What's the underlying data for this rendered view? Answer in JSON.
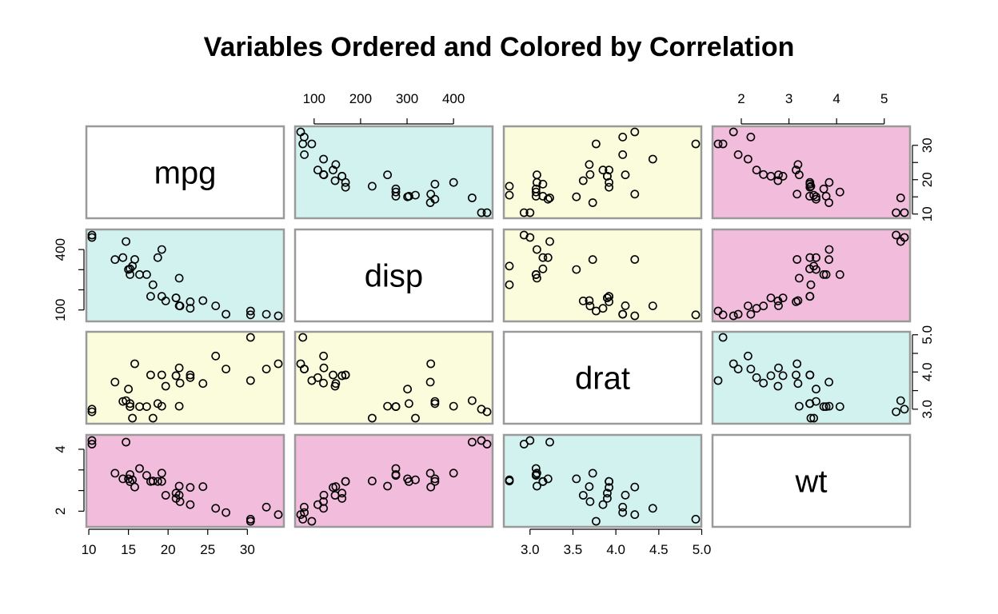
{
  "chart_data": {
    "type": "scatter-matrix",
    "title": "Variables Ordered and Colored by Correlation",
    "variables": [
      "mpg",
      "disp",
      "drat",
      "wt"
    ],
    "colors": {
      "diagonal": "#ffffff",
      "strong": "#f2bcdc",
      "medium": "#d2f2f0",
      "weak": "#fbfcdb",
      "frame": "#9a9a9a"
    },
    "panel_colors": [
      [
        "diagonal",
        "medium",
        "weak",
        "strong"
      ],
      [
        "medium",
        "diagonal",
        "weak",
        "strong"
      ],
      [
        "weak",
        "weak",
        "diagonal",
        "medium"
      ],
      [
        "strong",
        "strong",
        "medium",
        "diagonal"
      ]
    ],
    "ranges": {
      "mpg": [
        10.4,
        33.9
      ],
      "disp": [
        71.1,
        472
      ],
      "drat": [
        2.76,
        4.93
      ],
      "wt": [
        1.513,
        5.424
      ]
    },
    "ticks": {
      "mpg": [
        10,
        15,
        20,
        25,
        30
      ],
      "disp": [
        100,
        200,
        300,
        400
      ],
      "drat": [
        3.0,
        3.5,
        4.0,
        4.5,
        5.0
      ],
      "wt": [
        2,
        3,
        4,
        5
      ]
    },
    "tick_labels": {
      "bottom": {
        "mpg": [
          "10",
          "15",
          "20",
          "25",
          "30"
        ],
        "drat": [
          "3.0",
          "3.5",
          "4.0",
          "4.5",
          "5.0"
        ]
      },
      "top": {
        "disp": [
          "100",
          "200",
          "300",
          "400"
        ],
        "wt": [
          "2",
          "3",
          "4",
          "5"
        ]
      },
      "left": {
        "disp": [
          "100",
          "400"
        ],
        "wt": [
          "2",
          "4"
        ]
      },
      "right": {
        "mpg": [
          "10",
          "20",
          "30"
        ],
        "drat": [
          "3.0",
          "4.0",
          "5.0"
        ]
      }
    },
    "left_tick_values": {
      "disp": [
        100,
        200,
        300,
        400
      ],
      "wt": [
        2,
        3,
        4,
        5
      ]
    },
    "right_tick_values": {
      "mpg": [
        10,
        15,
        20,
        25,
        30
      ],
      "drat": [
        3.0,
        3.5,
        4.0,
        4.5,
        5.0
      ]
    },
    "data": {
      "mpg": [
        21.0,
        21.0,
        22.8,
        21.4,
        18.7,
        18.1,
        14.3,
        24.4,
        22.8,
        19.2,
        17.8,
        16.4,
        17.3,
        15.2,
        10.4,
        10.4,
        14.7,
        32.4,
        30.4,
        33.9,
        21.5,
        15.5,
        15.2,
        13.3,
        19.2,
        27.3,
        26.0,
        30.4,
        15.8,
        19.7,
        15.0,
        21.4
      ],
      "disp": [
        160,
        160,
        108,
        258,
        360,
        225,
        360,
        146.7,
        140.8,
        167.6,
        167.6,
        275.8,
        275.8,
        275.8,
        472,
        460,
        440,
        78.7,
        75.7,
        71.1,
        120.1,
        318,
        304,
        350,
        400,
        79,
        120.3,
        95.1,
        351,
        145,
        301,
        121
      ],
      "drat": [
        3.9,
        3.9,
        3.85,
        3.08,
        3.15,
        2.76,
        3.21,
        3.69,
        3.92,
        3.92,
        3.92,
        3.07,
        3.07,
        3.07,
        2.93,
        3.0,
        3.23,
        4.08,
        4.93,
        4.22,
        3.7,
        2.76,
        3.15,
        3.73,
        3.08,
        4.08,
        4.43,
        3.77,
        4.22,
        3.62,
        3.54,
        4.11
      ],
      "wt": [
        2.62,
        2.875,
        2.32,
        3.215,
        3.44,
        3.46,
        3.57,
        3.19,
        3.15,
        3.44,
        3.44,
        4.07,
        3.73,
        3.78,
        5.25,
        5.424,
        5.345,
        2.2,
        1.615,
        1.835,
        2.465,
        3.52,
        3.435,
        3.84,
        3.845,
        1.935,
        2.14,
        1.513,
        3.17,
        2.77,
        3.57,
        2.78
      ]
    }
  }
}
